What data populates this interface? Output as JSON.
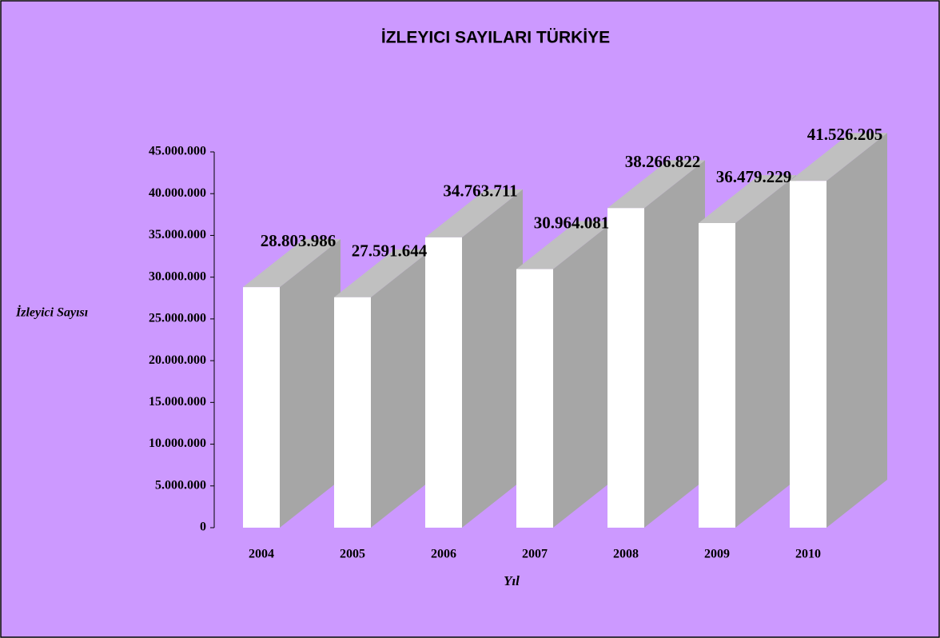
{
  "chart_data": {
    "type": "bar",
    "title": "İZLEYICI SAYILARI TÜRKİYE",
    "y_label": "İzleyici Sayısı",
    "x_label": "Yıl",
    "categories": [
      "2004",
      "2005",
      "2006",
      "2007",
      "2008",
      "2009",
      "2010"
    ],
    "values": [
      28803986,
      27591644,
      34763711,
      30964081,
      38266822,
      36479229,
      41526205
    ],
    "value_labels": [
      "28.803.986",
      "27.591.644",
      "34.763.711",
      "30.964.081",
      "38.266.822",
      "36.479.229",
      "41.526.205"
    ],
    "color": "#ffffff",
    "ylim": [
      0,
      45000000
    ],
    "yticks": [
      0,
      {
        "value": 5000000,
        "label": "5.000.000"
      },
      {
        "value": 10000000,
        "label": "10.000.000"
      },
      {
        "value": 15000000,
        "label": "15.000.000"
      },
      {
        "value": 20000000,
        "label": "20.000.000"
      },
      {
        "value": 25000000,
        "label": "25.000.000"
      },
      {
        "value": 30000000,
        "label": "30.000.000"
      },
      {
        "value": 35000000,
        "label": "35.000.000"
      },
      {
        "value": 40000000,
        "label": "40.000.000"
      },
      {
        "value": 45000000,
        "label": "45.000.000"
      }
    ]
  }
}
